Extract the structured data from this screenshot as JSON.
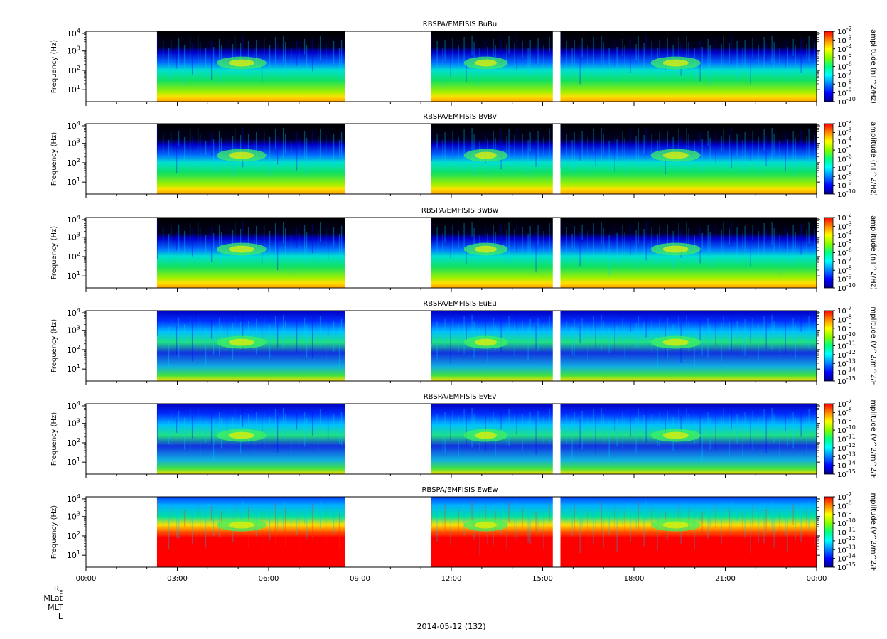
{
  "colors": {
    "background": "#000000",
    "gap": "#ffffff",
    "colorbar": [
      "#00008b",
      "#0000ff",
      "#0080ff",
      "#00ffff",
      "#00ff80",
      "#80ff00",
      "#ffff00",
      "#ff8000",
      "#ff0000"
    ]
  },
  "time_axis": {
    "tick_labels": [
      "00:00",
      "03:00",
      "06:00",
      "09:00",
      "12:00",
      "15:00",
      "18:00",
      "21:00",
      "00:00"
    ],
    "row_labels": [
      "Rᴇ",
      "MLat",
      "MLT",
      "L"
    ],
    "row_labels_main": [
      "R",
      "MLat",
      "MLT",
      "L"
    ],
    "row_label_sub": "E",
    "date_label": "2014-05-12 (132)"
  },
  "chart_data": [
    {
      "type": "heatmap",
      "title": "RBSPA/EMFISIS  BuBu",
      "ylabel": "Frequency (Hz)",
      "y_scale": "log",
      "y_ticks": [
        "10^1",
        "10^2",
        "10^3",
        "10^4"
      ],
      "colorbar_label": "amplitude (nT^2/Hz)",
      "colorbar_ticks": [
        "10^-2",
        "10^-3",
        "10^-4",
        "10^-5",
        "10^-6",
        "10^-7",
        "10^-8",
        "10^-9",
        "10^-10"
      ],
      "x_range": [
        "00:00",
        "24:00"
      ],
      "data_intervals": [
        [
          "02:20",
          "08:30"
        ],
        [
          "11:20",
          "15:20"
        ],
        [
          "15:35",
          "24:00"
        ]
      ],
      "kind": "B"
    },
    {
      "type": "heatmap",
      "title": "RBSPA/EMFISIS  BvBv",
      "ylabel": "Frequency (Hz)",
      "y_scale": "log",
      "y_ticks": [
        "10^1",
        "10^2",
        "10^3",
        "10^4"
      ],
      "colorbar_label": "amplitude (nT^2/Hz)",
      "colorbar_ticks": [
        "10^-2",
        "10^-3",
        "10^-4",
        "10^-5",
        "10^-6",
        "10^-7",
        "10^-8",
        "10^-9",
        "10^-10"
      ],
      "x_range": [
        "00:00",
        "24:00"
      ],
      "data_intervals": [
        [
          "02:20",
          "08:30"
        ],
        [
          "11:20",
          "15:20"
        ],
        [
          "15:35",
          "24:00"
        ]
      ],
      "kind": "B"
    },
    {
      "type": "heatmap",
      "title": "RBSPA/EMFISIS  BwBw",
      "ylabel": "Frequency (Hz)",
      "y_scale": "log",
      "y_ticks": [
        "10^1",
        "10^2",
        "10^3",
        "10^4"
      ],
      "colorbar_label": "amplitude (nT^2/Hz)",
      "colorbar_ticks": [
        "10^-2",
        "10^-3",
        "10^-4",
        "10^-5",
        "10^-6",
        "10^-7",
        "10^-8",
        "10^-9",
        "10^-10"
      ],
      "x_range": [
        "00:00",
        "24:00"
      ],
      "data_intervals": [
        [
          "02:20",
          "08:30"
        ],
        [
          "11:20",
          "15:20"
        ],
        [
          "15:35",
          "24:00"
        ]
      ],
      "kind": "B"
    },
    {
      "type": "heatmap",
      "title": "RBSPA/EMFISIS  EuEu",
      "ylabel": "Frequency (Hz)",
      "y_scale": "log",
      "y_ticks": [
        "10^1",
        "10^2",
        "10^3",
        "10^4"
      ],
      "colorbar_label": "mplitude (V^2/m^2/F",
      "colorbar_ticks": [
        "10^-7",
        "10^-8",
        "10^-9",
        "10^-10",
        "10^-11",
        "10^-12",
        "10^-13",
        "10^-14",
        "10^-15"
      ],
      "x_range": [
        "00:00",
        "24:00"
      ],
      "data_intervals": [
        [
          "02:20",
          "08:30"
        ],
        [
          "11:20",
          "15:20"
        ],
        [
          "15:35",
          "24:00"
        ]
      ],
      "kind": "E"
    },
    {
      "type": "heatmap",
      "title": "RBSPA/EMFISIS  EvEv",
      "ylabel": "Frequency (Hz)",
      "y_scale": "log",
      "y_ticks": [
        "10^1",
        "10^2",
        "10^3",
        "10^4"
      ],
      "colorbar_label": "mplitude (V^2/m^2/F",
      "colorbar_ticks": [
        "10^-7",
        "10^-8",
        "10^-9",
        "10^-10",
        "10^-11",
        "10^-12",
        "10^-13",
        "10^-14",
        "10^-15"
      ],
      "x_range": [
        "00:00",
        "24:00"
      ],
      "data_intervals": [
        [
          "02:20",
          "08:30"
        ],
        [
          "11:20",
          "15:20"
        ],
        [
          "15:35",
          "24:00"
        ]
      ],
      "kind": "E"
    },
    {
      "type": "heatmap",
      "title": "RBSPA/EMFISIS  EwEw",
      "ylabel": "Frequency (Hz)",
      "y_scale": "log",
      "y_ticks": [
        "10^1",
        "10^2",
        "10^3",
        "10^4"
      ],
      "colorbar_label": "mplitude (V^2/m^2/F",
      "colorbar_ticks": [
        "10^-7",
        "10^-8",
        "10^-9",
        "10^-10",
        "10^-11",
        "10^-12",
        "10^-13",
        "10^-14",
        "10^-15"
      ],
      "x_range": [
        "00:00",
        "24:00"
      ],
      "data_intervals": [
        [
          "02:20",
          "08:30"
        ],
        [
          "11:20",
          "15:20"
        ],
        [
          "15:35",
          "24:00"
        ]
      ],
      "kind": "Ew"
    }
  ]
}
